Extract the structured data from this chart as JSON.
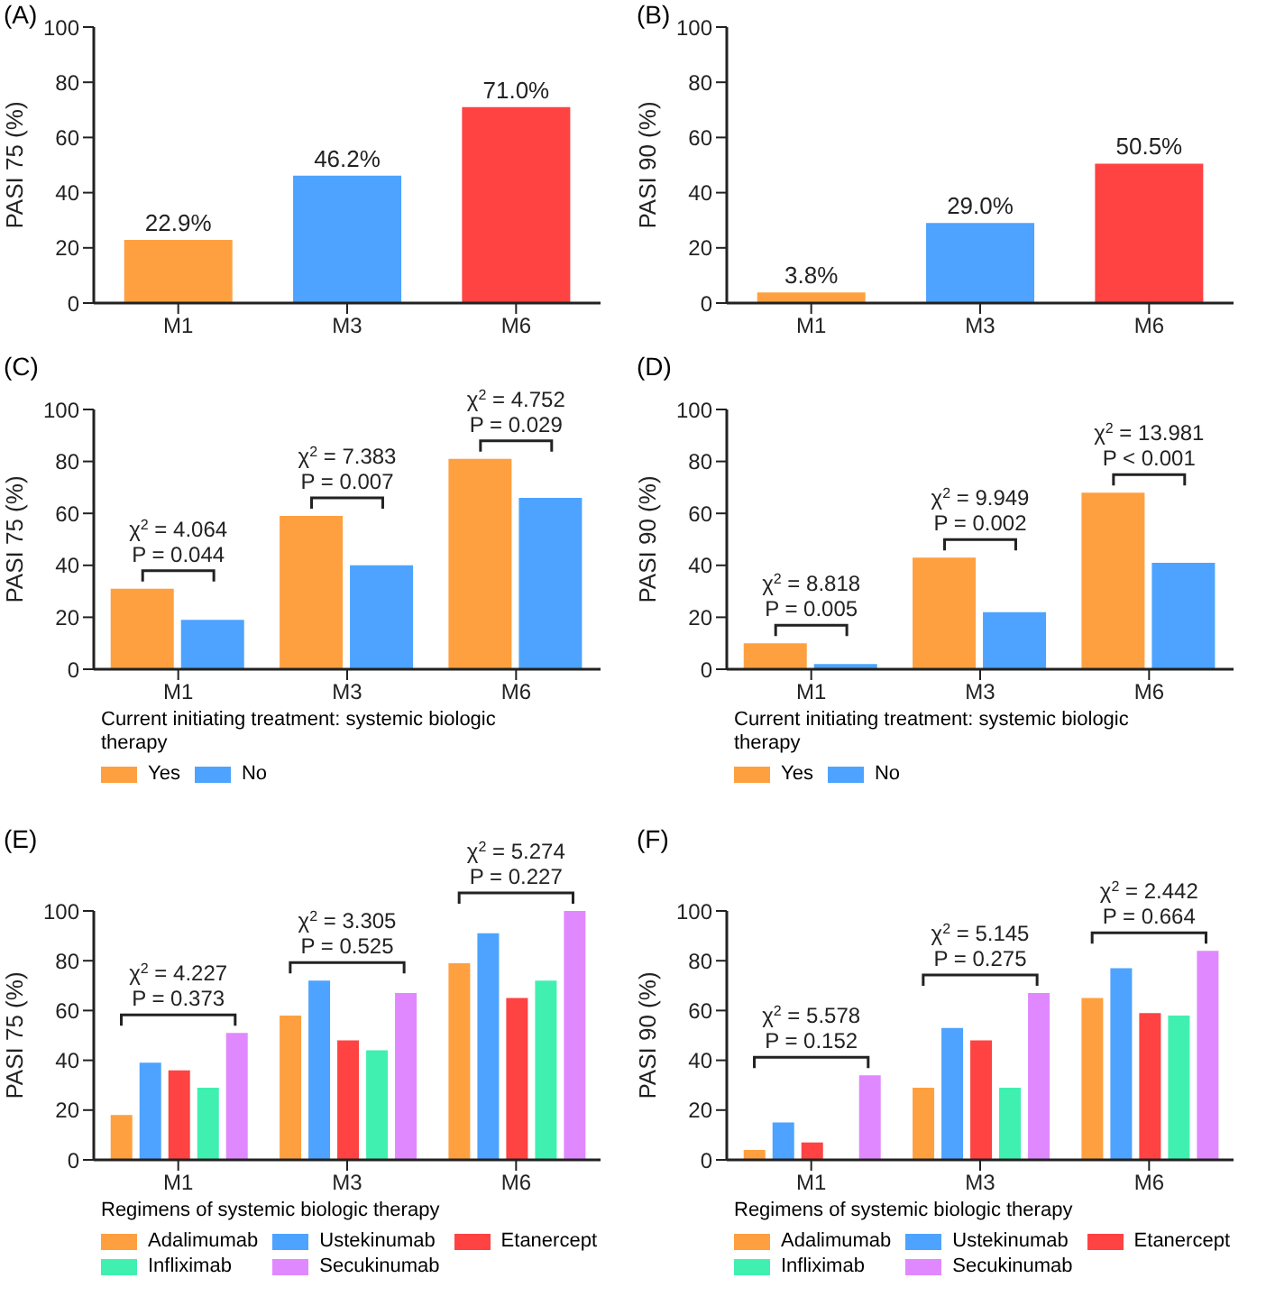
{
  "chart_data": [
    {
      "type": "bar",
      "title": "(A)",
      "ylabel": "PASI 75 (%)",
      "categories": [
        "M1",
        "M3",
        "M6"
      ],
      "values": [
        22.9,
        46.2,
        71.0
      ],
      "colors": [
        "#ffa040",
        "#4da3ff",
        "#ff4242"
      ],
      "value_labels": [
        "22.9%",
        "46.2%",
        "71.0%"
      ],
      "ylim": [
        0,
        100
      ],
      "yticks": [
        0,
        20,
        40,
        60,
        80,
        100
      ]
    },
    {
      "type": "bar",
      "title": "(B)",
      "ylabel": "PASI 90 (%)",
      "categories": [
        "M1",
        "M3",
        "M6"
      ],
      "values": [
        3.8,
        29.0,
        50.5
      ],
      "colors": [
        "#ffa040",
        "#4da3ff",
        "#ff4242"
      ],
      "value_labels": [
        "3.8%",
        "29.0%",
        "50.5%"
      ],
      "ylim": [
        0,
        100
      ],
      "yticks": [
        0,
        20,
        40,
        60,
        80,
        100
      ]
    },
    {
      "type": "bar",
      "title": "(C)",
      "ylabel": "PASI 75 (%)",
      "xlabel": "Current initiating treatment: systemic biologic therapy",
      "categories": [
        "M1",
        "M3",
        "M6"
      ],
      "legend": "bottom",
      "ylim": [
        0,
        100
      ],
      "yticks": [
        0,
        20,
        40,
        60,
        80,
        100
      ],
      "series": [
        {
          "name": "Yes",
          "color": "#ffa040",
          "values": [
            31,
            59,
            81
          ]
        },
        {
          "name": "No",
          "color": "#4da3ff",
          "values": [
            19,
            40,
            66
          ]
        }
      ],
      "annotations": [
        "χ$^{2}$ = 4.064\nP = 0.044",
        "χ$^{2}$ = 7.383\nP = 0.007",
        "χ$^{2}$ = 4.752\nP = 0.029"
      ]
    },
    {
      "type": "bar",
      "title": "(D)",
      "ylabel": "PASI 90 (%)",
      "xlabel": "Current initiating treatment: systemic biologic therapy",
      "categories": [
        "M1",
        "M3",
        "M6"
      ],
      "legend": "bottom",
      "ylim": [
        0,
        100
      ],
      "yticks": [
        0,
        20,
        40,
        60,
        80,
        100
      ],
      "series": [
        {
          "name": "Yes",
          "color": "#ffa040",
          "values": [
            10,
            43,
            68
          ]
        },
        {
          "name": "No",
          "color": "#4da3ff",
          "values": [
            2,
            22,
            41
          ]
        }
      ],
      "annotations": [
        "χ$^{2}$ = 8.818\nP = 0.005",
        "χ$^{2}$ = 9.949\nP = 0.002",
        "χ$^{2}$ = 13.981\nP < 0.001"
      ]
    },
    {
      "type": "bar",
      "title": "(E)",
      "ylabel": "PASI 75 (%)",
      "xlabel": "Regimens of systemic biologic therapy",
      "categories": [
        "M1",
        "M3",
        "M6"
      ],
      "legend": "bottom",
      "ylim": [
        0,
        100
      ],
      "yticks": [
        0,
        20,
        40,
        60,
        80,
        100
      ],
      "series": [
        {
          "name": "Adalimumab",
          "color": "#ffa040",
          "values": [
            18,
            58,
            79
          ]
        },
        {
          "name": "Ustekinumab",
          "color": "#4da3ff",
          "values": [
            39,
            72,
            91
          ]
        },
        {
          "name": "Etanercept",
          "color": "#ff4242",
          "values": [
            36,
            48,
            65
          ]
        },
        {
          "name": "Infliximab",
          "color": "#40f0b0",
          "values": [
            29,
            44,
            72
          ]
        },
        {
          "name": "Secukinumab",
          "color": "#e088ff",
          "values": [
            51,
            67,
            100
          ]
        }
      ],
      "annotations": [
        "χ$^{2}$ = 4.227\nP = 0.373",
        "χ$^{2}$ = 3.305\nP = 0.525",
        "χ$^{2}$ = 5.274\nP = 0.227"
      ]
    },
    {
      "type": "bar",
      "title": "(F)",
      "ylabel": "PASI 90 (%)",
      "xlabel": "Regimens of systemic biologic therapy",
      "categories": [
        "M1",
        "M3",
        "M6"
      ],
      "legend": "bottom",
      "ylim": [
        0,
        100
      ],
      "yticks": [
        0,
        20,
        40,
        60,
        80,
        100
      ],
      "series": [
        {
          "name": "Adalimumab",
          "color": "#ffa040",
          "values": [
            4,
            29,
            65
          ]
        },
        {
          "name": "Ustekinumab",
          "color": "#4da3ff",
          "values": [
            15,
            53,
            77
          ]
        },
        {
          "name": "Etanercept",
          "color": "#ff4242",
          "values": [
            7,
            48,
            59
          ]
        },
        {
          "name": "Infliximab",
          "color": "#40f0b0",
          "values": [
            0,
            29,
            58
          ]
        },
        {
          "name": "Secukinumab",
          "color": "#e088ff",
          "values": [
            34,
            67,
            84
          ]
        }
      ],
      "annotations": [
        "χ$^{2}$ = 5.578\nP = 0.152",
        "χ$^{2}$ = 5.145\nP = 0.275",
        "χ$^{2}$ = 2.442\nP = 0.664"
      ]
    }
  ]
}
